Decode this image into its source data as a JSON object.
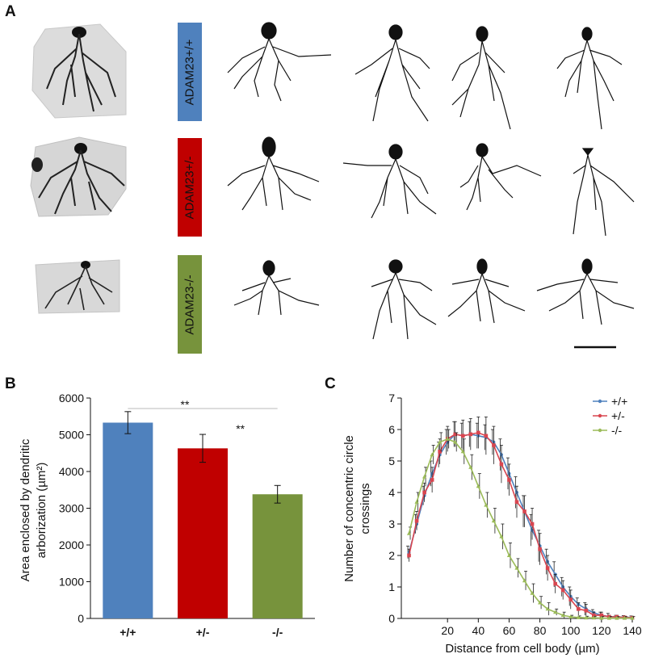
{
  "panels": {
    "a": "A",
    "b": "B",
    "c": "C"
  },
  "genotype_labels": [
    {
      "text": "ADAM23+/+",
      "color": "#4f81bd"
    },
    {
      "text": "ADAM23+/-",
      "color": "#c00000"
    },
    {
      "text": "ADAM23-/-",
      "color": "#77933c"
    }
  ],
  "chart_data": [
    {
      "type": "bar",
      "categories": [
        "+/+",
        "+/-",
        "-/-"
      ],
      "values": [
        5330,
        4630,
        3380
      ],
      "errors": [
        300,
        380,
        240
      ],
      "colors": [
        "#4f81bd",
        "#c00000",
        "#77933c"
      ],
      "title": "",
      "xlabel": "",
      "ylabel_line1": "Area enclosed by dendritic",
      "ylabel_line2": "arborization (µm²)",
      "ylim": [
        0,
        6000
      ],
      "yticks": [
        "0",
        "1000",
        "2000",
        "3000",
        "4000",
        "5000",
        "6000"
      ],
      "significance": [
        {
          "between": [
            "+/+",
            "-/-"
          ],
          "label": "**"
        },
        {
          "between": [
            "+/-",
            "-/-"
          ],
          "label": "**"
        }
      ]
    },
    {
      "type": "line",
      "x": [
        -5,
        0,
        5,
        10,
        15,
        20,
        25,
        30,
        35,
        40,
        45,
        50,
        55,
        60,
        65,
        70,
        75,
        80,
        85,
        90,
        95,
        100,
        105,
        110,
        115,
        120,
        125,
        130,
        135,
        140
      ],
      "series": [
        {
          "name": "+/+",
          "color": "#4f81bd",
          "values": [
            2.1,
            3.0,
            3.9,
            4.6,
            5.2,
            5.6,
            5.85,
            5.8,
            5.85,
            5.8,
            5.75,
            5.6,
            5.2,
            4.6,
            4.0,
            3.4,
            2.8,
            2.3,
            1.8,
            1.4,
            1.0,
            0.7,
            0.45,
            0.3,
            0.18,
            0.1,
            0.06,
            0.05,
            0.04,
            0.03
          ],
          "errors": [
            0.2,
            0.3,
            0.3,
            0.4,
            0.4,
            0.4,
            0.4,
            0.4,
            0.4,
            0.4,
            0.4,
            0.4,
            0.5,
            0.5,
            0.5,
            0.5,
            0.5,
            0.5,
            0.4,
            0.4,
            0.3,
            0.3,
            0.2,
            0.2,
            0.1,
            0.1,
            0.1,
            0.05,
            0.05,
            0.05
          ]
        },
        {
          "name": "+/-",
          "color": "#d9454f",
          "values": [
            2.0,
            3.1,
            4.0,
            4.4,
            5.3,
            5.7,
            5.85,
            5.8,
            5.85,
            5.9,
            5.8,
            5.5,
            4.9,
            4.4,
            3.7,
            3.4,
            3.0,
            2.2,
            1.6,
            1.1,
            0.9,
            0.6,
            0.3,
            0.25,
            0.1,
            0.1,
            0.05,
            0.05,
            0.03,
            0.02
          ],
          "errors": [
            0.2,
            0.3,
            0.3,
            0.4,
            0.4,
            0.4,
            0.4,
            0.5,
            0.5,
            0.5,
            0.6,
            0.6,
            0.6,
            0.5,
            0.5,
            0.5,
            0.5,
            0.5,
            0.4,
            0.3,
            0.3,
            0.3,
            0.2,
            0.2,
            0.1,
            0.1,
            0.05,
            0.05,
            0.05,
            0.05
          ]
        },
        {
          "name": "-/-",
          "color": "#9bbb59",
          "values": [
            2.7,
            3.7,
            4.5,
            5.2,
            5.6,
            5.7,
            5.6,
            5.3,
            4.8,
            4.2,
            3.6,
            3.1,
            2.6,
            2.0,
            1.6,
            1.2,
            0.8,
            0.5,
            0.3,
            0.2,
            0.1,
            0.05,
            0.03,
            0.02,
            0.02,
            0.01,
            0.01,
            0.01,
            0.01,
            0.01
          ],
          "errors": [
            0.2,
            0.3,
            0.3,
            0.3,
            0.3,
            0.3,
            0.3,
            0.4,
            0.4,
            0.4,
            0.4,
            0.4,
            0.4,
            0.4,
            0.3,
            0.3,
            0.3,
            0.2,
            0.2,
            0.1,
            0.1,
            0.05,
            0.05,
            0.05,
            0.05,
            0.05,
            0.05,
            0.05,
            0.05,
            0.05
          ]
        }
      ],
      "title": "",
      "xlabel": "Distance from cell body (µm)",
      "ylabel_line1": "Number of concentric circle",
      "ylabel_line2": "crossings",
      "xlim": [
        -10,
        140
      ],
      "ylim": [
        0,
        7
      ],
      "xticks": [
        "20",
        "40",
        "60",
        "80",
        "100",
        "120",
        "140"
      ],
      "yticks": [
        "0",
        "1",
        "2",
        "3",
        "4",
        "5",
        "6",
        "7"
      ],
      "legend": "top-right"
    }
  ]
}
